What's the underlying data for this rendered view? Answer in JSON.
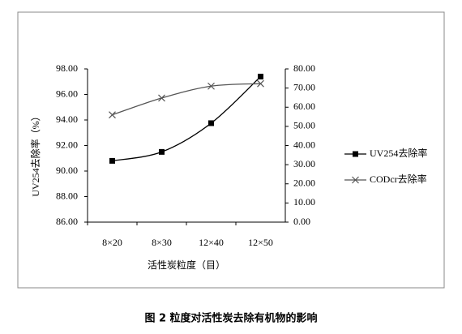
{
  "chart_data": {
    "type": "line",
    "y_label": "UV254去除率（%）",
    "x_label": "活性炭粒度（目）",
    "caption": "图 2  粒度对活性炭去除有机物的影响",
    "categories": [
      "8×20",
      "8×30",
      "12×40",
      "12×50"
    ],
    "series": [
      {
        "name": "UV254去除率",
        "color": "#000000",
        "marker": "square",
        "values": [
          90.8,
          91.5,
          93.75,
          97.4
        ]
      },
      {
        "name": "CODcr去除率",
        "color": "#555555",
        "marker": "x",
        "axis": "y2",
        "values": [
          56,
          64.8,
          71,
          72.3
        ]
      }
    ],
    "ylim": [
      86,
      98
    ],
    "yticks": [
      {
        "value": 86,
        "label": "86.00"
      },
      {
        "value": 88,
        "label": "88.00"
      },
      {
        "value": 90,
        "label": "90.00"
      },
      {
        "value": 92,
        "label": "92.00"
      },
      {
        "value": 94,
        "label": "94.00"
      },
      {
        "value": 96,
        "label": "96.00"
      },
      {
        "value": 98,
        "label": "98.00"
      }
    ],
    "y2lim": [
      0,
      80
    ],
    "y2ticks": [
      {
        "value": 0,
        "label": "0.00"
      },
      {
        "value": 10,
        "label": "10.00"
      },
      {
        "value": 20,
        "label": "20.00"
      },
      {
        "value": 30,
        "label": "30.00"
      },
      {
        "value": 40,
        "label": "40.00"
      },
      {
        "value": 50,
        "label": "50.00"
      },
      {
        "value": 60,
        "label": "60.00"
      },
      {
        "value": 70,
        "label": "70.00"
      },
      {
        "value": 80,
        "label": "80.00"
      }
    ],
    "legend": "right"
  }
}
